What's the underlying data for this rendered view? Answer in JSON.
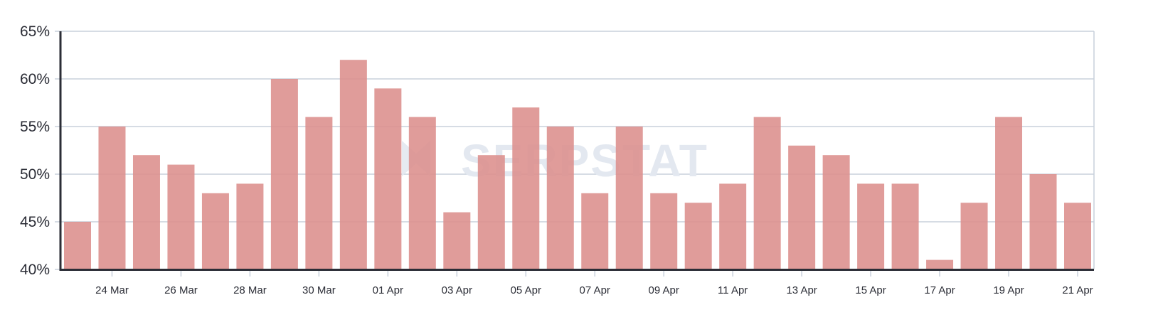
{
  "chart_data": {
    "type": "bar",
    "title": "",
    "xlabel": "",
    "ylabel": "",
    "ylim": [
      40,
      65
    ],
    "y_ticks": [
      40,
      45,
      50,
      55,
      60,
      65
    ],
    "y_tick_format": "percent",
    "grid": true,
    "categories": [
      "23 Mar",
      "24 Mar",
      "25 Mar",
      "26 Mar",
      "27 Mar",
      "28 Mar",
      "29 Mar",
      "30 Mar",
      "31 Mar",
      "01 Apr",
      "02 Apr",
      "03 Apr",
      "04 Apr",
      "05 Apr",
      "06 Apr",
      "07 Apr",
      "08 Apr",
      "09 Apr",
      "10 Apr",
      "11 Apr",
      "12 Apr",
      "13 Apr",
      "14 Apr",
      "15 Apr",
      "16 Apr",
      "17 Apr",
      "18 Apr",
      "19 Apr",
      "20 Apr",
      "21 Apr"
    ],
    "x_tick_labels": [
      "24 Mar",
      "26 Mar",
      "28 Mar",
      "30 Mar",
      "01 Apr",
      "03 Apr",
      "05 Apr",
      "07 Apr",
      "09 Apr",
      "11 Apr",
      "13 Apr",
      "15 Apr",
      "17 Apr",
      "19 Apr",
      "21 Apr"
    ],
    "values": [
      45,
      55,
      52,
      51,
      48,
      49,
      60,
      56,
      62,
      59,
      56,
      46,
      52,
      57,
      55,
      48,
      55,
      48,
      47,
      49,
      56,
      53,
      52,
      49,
      49,
      41,
      47,
      56,
      50,
      47
    ],
    "colors": {
      "bar": "#dc8e8c",
      "grid": "#c8d0dc",
      "axis": "#2b2d36"
    },
    "watermark": "SERPSTAT"
  }
}
